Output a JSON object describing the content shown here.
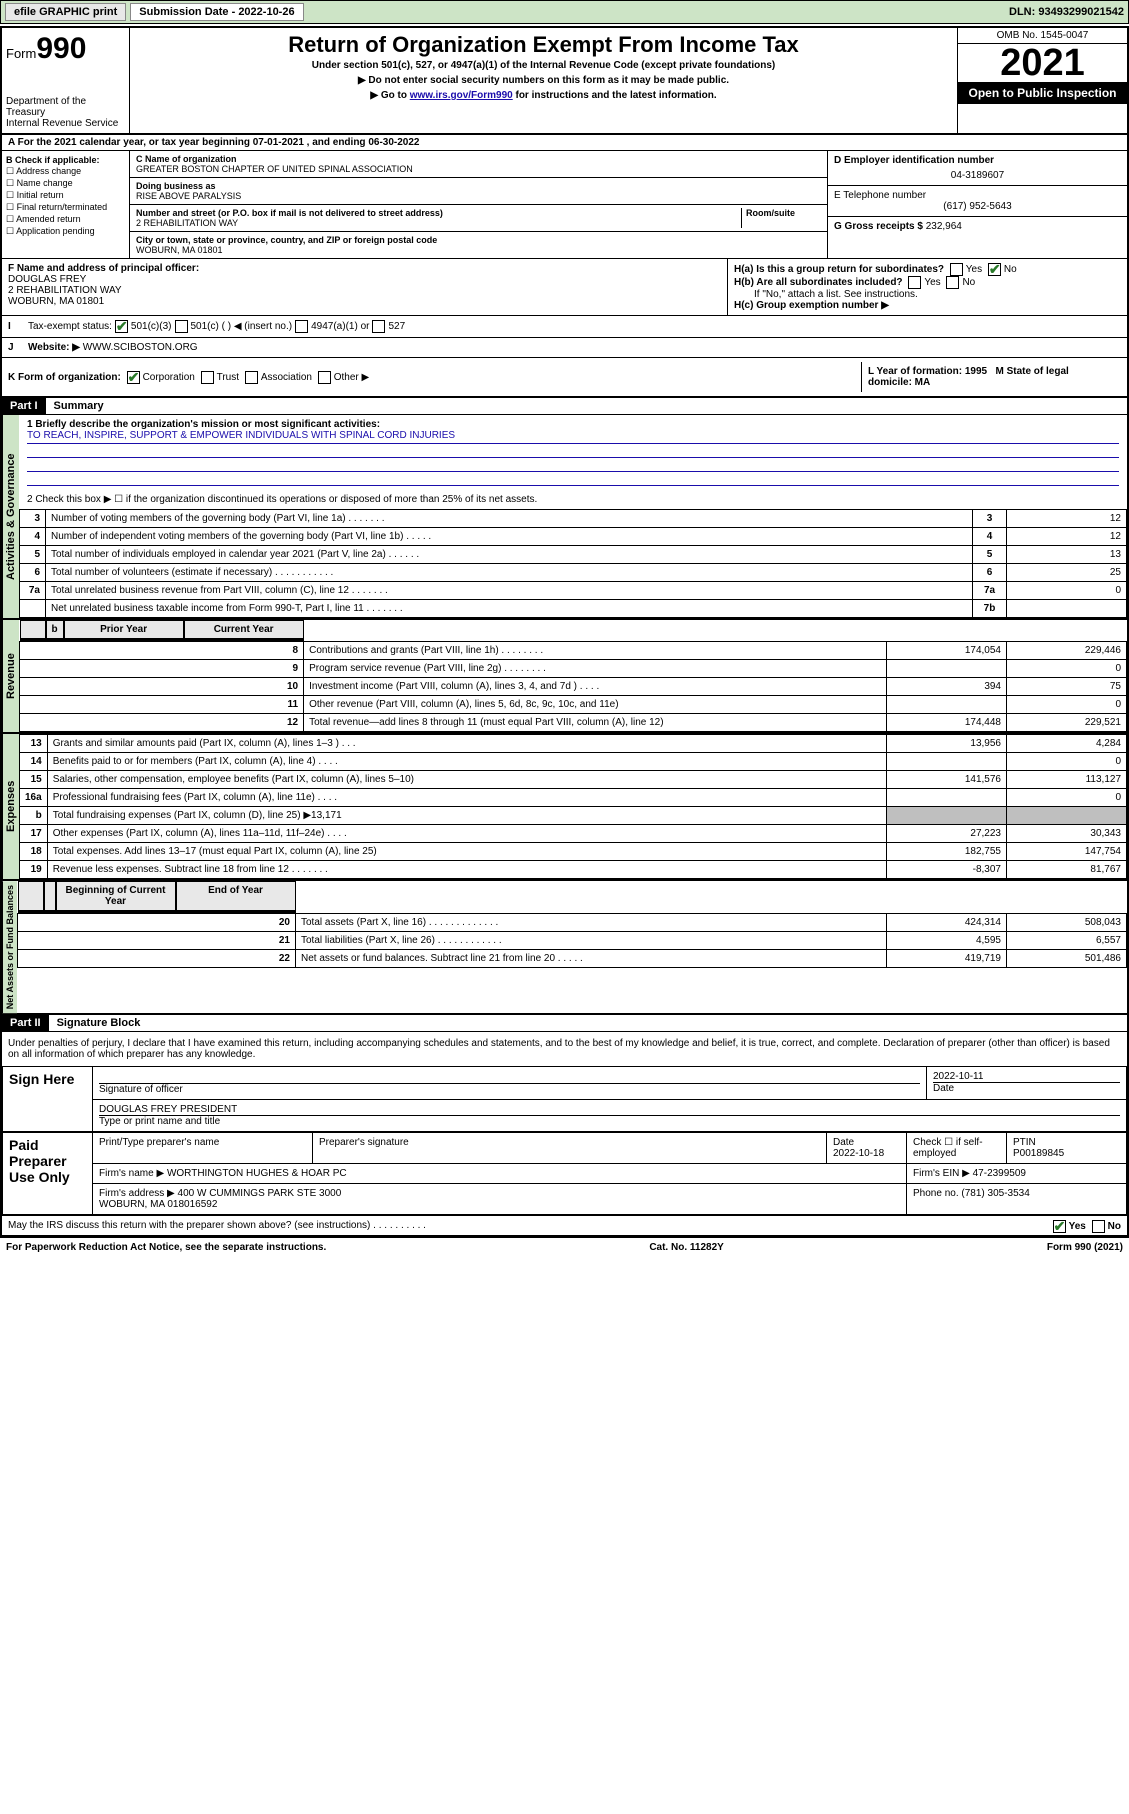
{
  "topbar": {
    "efile": "efile GRAPHIC print",
    "sub_label": "Submission Date - 2022-10-26",
    "dln": "DLN: 93493299021542"
  },
  "header": {
    "form_word": "Form",
    "form_num": "990",
    "dept": "Department of the Treasury\nInternal Revenue Service",
    "title": "Return of Organization Exempt From Income Tax",
    "sub1": "Under section 501(c), 527, or 4947(a)(1) of the Internal Revenue Code (except private foundations)",
    "sub2": "▶ Do not enter social security numbers on this form as it may be made public.",
    "sub3_pre": "▶ Go to ",
    "sub3_link": "www.irs.gov/Form990",
    "sub3_post": " for instructions and the latest information.",
    "omb": "OMB No. 1545-0047",
    "year": "2021",
    "open": "Open to Public Inspection"
  },
  "row_a": "A For the 2021 calendar year, or tax year beginning 07-01-2021   , and ending 06-30-2022",
  "col_b": {
    "title": "B Check if applicable:",
    "items": [
      "Address change",
      "Name change",
      "Initial return",
      "Final return/terminated",
      "Amended return",
      "Application pending"
    ]
  },
  "col_c": {
    "name_lbl": "C Name of organization",
    "name": "GREATER BOSTON CHAPTER OF UNITED SPINAL ASSOCIATION",
    "dba_lbl": "Doing business as",
    "dba": "RISE ABOVE PARALYSIS",
    "street_lbl": "Number and street (or P.O. box if mail is not delivered to street address)",
    "room_lbl": "Room/suite",
    "street": "2 REHABILITATION WAY",
    "city_lbl": "City or town, state or province, country, and ZIP or foreign postal code",
    "city": "WOBURN, MA  01801"
  },
  "col_d": {
    "d_lbl": "D Employer identification number",
    "d_val": "04-3189607",
    "e_lbl": "E Telephone number",
    "e_val": "(617) 952-5643",
    "g_lbl": "G Gross receipts $",
    "g_val": "232,964"
  },
  "f": {
    "lbl": "F Name and address of principal officer:",
    "name": "DOUGLAS FREY",
    "addr1": "2 REHABILITATION WAY",
    "addr2": "WOBURN, MA  01801"
  },
  "h": {
    "ha": "H(a)  Is this a group return for subordinates?",
    "hb": "H(b)  Are all subordinates included?",
    "hb_note": "If \"No,\" attach a list. See instructions.",
    "hc": "H(c)  Group exemption number ▶",
    "yes": "Yes",
    "no": "No"
  },
  "i": {
    "lbl": "Tax-exempt status:",
    "o1": "501(c)(3)",
    "o2": "501(c) (   ) ◀ (insert no.)",
    "o3": "4947(a)(1) or",
    "o4": "527"
  },
  "j": {
    "lbl": "Website: ▶",
    "val": "WWW.SCIBOSTON.ORG"
  },
  "k": {
    "lbl": "K Form of organization:",
    "o1": "Corporation",
    "o2": "Trust",
    "o3": "Association",
    "o4": "Other ▶"
  },
  "lm": {
    "l": "L Year of formation: 1995",
    "m": "M State of legal domicile: MA"
  },
  "part1": {
    "hdr": "Part I",
    "title": "Summary",
    "q1": "1  Briefly describe the organization's mission or most significant activities:",
    "mission": "TO REACH, INSPIRE, SUPPORT & EMPOWER INDIVIDUALS WITH SPINAL CORD INJURIES",
    "q2": "2  Check this box ▶ ☐  if the organization discontinued its operations or disposed of more than 25% of its net assets.",
    "gov_label": "Activities & Governance",
    "rev_label": "Revenue",
    "exp_label": "Expenses",
    "net_label": "Net Assets or Fund Balances",
    "gov_lines": [
      {
        "n": "3",
        "d": "Number of voting members of the governing body (Part VI, line 1a)  .   .   .   .   .   .   .",
        "b": "3",
        "v": "12"
      },
      {
        "n": "4",
        "d": "Number of independent voting members of the governing body (Part VI, line 1b)  .   .   .   .   .",
        "b": "4",
        "v": "12"
      },
      {
        "n": "5",
        "d": "Total number of individuals employed in calendar year 2021 (Part V, line 2a)  .   .   .   .   .   .",
        "b": "5",
        "v": "13"
      },
      {
        "n": "6",
        "d": "Total number of volunteers (estimate if necessary)  .   .   .   .   .   .   .   .   .   .   .",
        "b": "6",
        "v": "25"
      },
      {
        "n": "7a",
        "d": "Total unrelated business revenue from Part VIII, column (C), line 12  .   .   .   .   .   .   .",
        "b": "7a",
        "v": "0"
      },
      {
        "n": "",
        "d": "Net unrelated business taxable income from Form 990-T, Part I, line 11  .   .   .   .   .   .   .",
        "b": "7b",
        "v": ""
      }
    ],
    "col_hdr_prior": "Prior Year",
    "col_hdr_curr": "Current Year",
    "rev_lines": [
      {
        "n": "8",
        "d": "Contributions and grants (Part VIII, line 1h)   .   .   .   .   .   .   .   .",
        "p": "174,054",
        "c": "229,446"
      },
      {
        "n": "9",
        "d": "Program service revenue (Part VIII, line 2g)   .   .   .   .   .   .   .   .",
        "p": "",
        "c": "0"
      },
      {
        "n": "10",
        "d": "Investment income (Part VIII, column (A), lines 3, 4, and 7d )   .   .   .   .",
        "p": "394",
        "c": "75"
      },
      {
        "n": "11",
        "d": "Other revenue (Part VIII, column (A), lines 5, 6d, 8c, 9c, 10c, and 11e)",
        "p": "",
        "c": "0"
      },
      {
        "n": "12",
        "d": "Total revenue—add lines 8 through 11 (must equal Part VIII, column (A), line 12)",
        "p": "174,448",
        "c": "229,521"
      }
    ],
    "exp_lines": [
      {
        "n": "13",
        "d": "Grants and similar amounts paid (Part IX, column (A), lines 1–3 )   .   .   .",
        "p": "13,956",
        "c": "4,284"
      },
      {
        "n": "14",
        "d": "Benefits paid to or for members (Part IX, column (A), line 4)   .   .   .   .",
        "p": "",
        "c": "0"
      },
      {
        "n": "15",
        "d": "Salaries, other compensation, employee benefits (Part IX, column (A), lines 5–10)",
        "p": "141,576",
        "c": "113,127"
      },
      {
        "n": "16a",
        "d": "Professional fundraising fees (Part IX, column (A), line 11e)   .   .   .   .",
        "p": "",
        "c": "0"
      },
      {
        "n": "b",
        "d": "Total fundraising expenses (Part IX, column (D), line 25) ▶13,171",
        "p": "shade",
        "c": "shade"
      },
      {
        "n": "17",
        "d": "Other expenses (Part IX, column (A), lines 11a–11d, 11f–24e)   .   .   .   .",
        "p": "27,223",
        "c": "30,343"
      },
      {
        "n": "18",
        "d": "Total expenses. Add lines 13–17 (must equal Part IX, column (A), line 25)",
        "p": "182,755",
        "c": "147,754"
      },
      {
        "n": "19",
        "d": "Revenue less expenses. Subtract line 18 from line 12   .   .   .   .   .   .   .",
        "p": "-8,307",
        "c": "81,767"
      }
    ],
    "col_hdr_beg": "Beginning of Current Year",
    "col_hdr_end": "End of Year",
    "net_lines": [
      {
        "n": "20",
        "d": "Total assets (Part X, line 16)   .   .   .   .   .   .   .   .   .   .   .   .   .",
        "p": "424,314",
        "c": "508,043"
      },
      {
        "n": "21",
        "d": "Total liabilities (Part X, line 26)   .   .   .   .   .   .   .   .   .   .   .   .",
        "p": "4,595",
        "c": "6,557"
      },
      {
        "n": "22",
        "d": "Net assets or fund balances. Subtract line 21 from line 20   .   .   .   .   .",
        "p": "419,719",
        "c": "501,486"
      }
    ]
  },
  "part2": {
    "hdr": "Part II",
    "title": "Signature Block",
    "decl": "Under penalties of perjury, I declare that I have examined this return, including accompanying schedules and statements, and to the best of my knowledge and belief, it is true, correct, and complete. Declaration of preparer (other than officer) is based on all information of which preparer has any knowledge.",
    "sign_here": "Sign Here",
    "sig_officer": "Signature of officer",
    "sig_date": "2022-10-11",
    "date_lbl": "Date",
    "officer_name": "DOUGLAS FREY PRESIDENT",
    "officer_lbl": "Type or print name and title",
    "paid": "Paid Preparer Use Only",
    "prep_name_lbl": "Print/Type preparer's name",
    "prep_sig_lbl": "Preparer's signature",
    "prep_date_lbl": "Date",
    "prep_date": "2022-10-18",
    "self_emp": "Check ☐ if self-employed",
    "ptin_lbl": "PTIN",
    "ptin": "P00189845",
    "firm_name_lbl": "Firm's name    ▶",
    "firm_name": "WORTHINGTON HUGHES & HOAR PC",
    "firm_ein_lbl": "Firm's EIN ▶",
    "firm_ein": "47-2399509",
    "firm_addr_lbl": "Firm's address ▶",
    "firm_addr": "400 W CUMMINGS PARK STE 3000\nWOBURN, MA  018016592",
    "phone_lbl": "Phone no.",
    "phone": "(781) 305-3534",
    "may_irs": "May the IRS discuss this return with the preparer shown above? (see instructions)   .   .   .   .   .   .   .   .   .   ."
  },
  "footer": {
    "left": "For Paperwork Reduction Act Notice, see the separate instructions.",
    "mid": "Cat. No. 11282Y",
    "right": "Form 990 (2021)"
  }
}
